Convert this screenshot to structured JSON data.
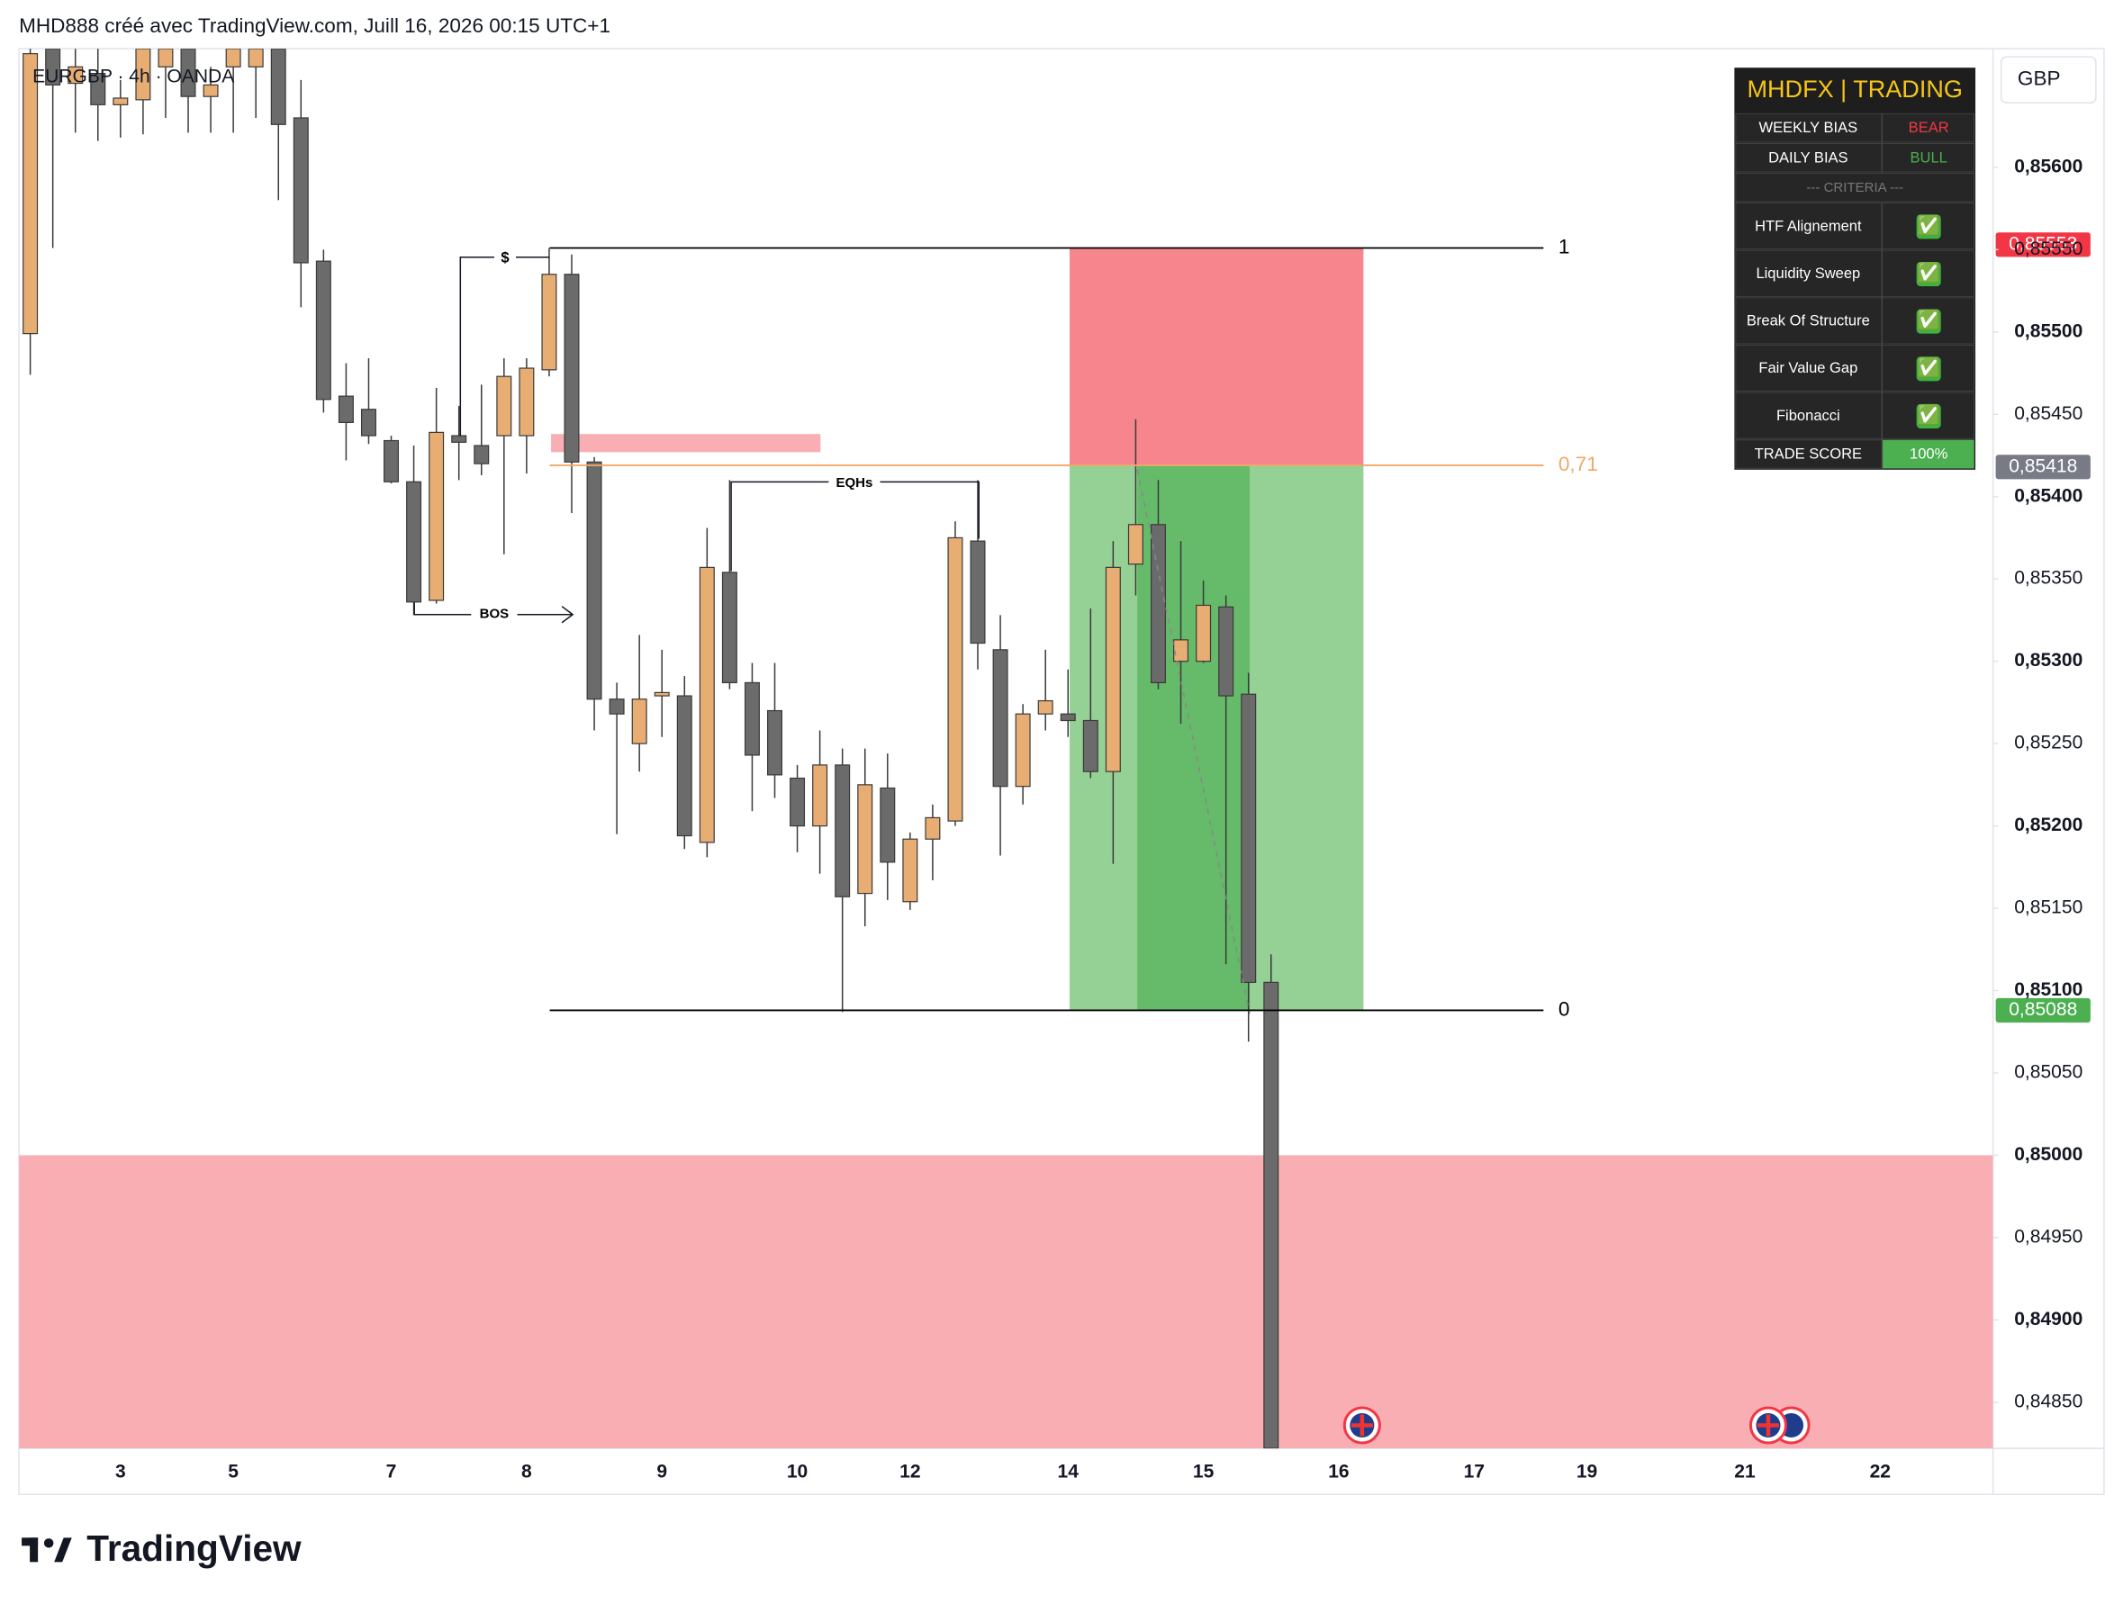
{
  "chart_data": {
    "type": "candlestick",
    "credit": "MHD888 créé avec TradingView.com, Juill 16, 2026 00:15 UTC+1",
    "symbol": "EURGBP · 4h · OANDA",
    "currency": "GBP",
    "brand": "TradingView",
    "up_color": "#e8ad73",
    "down_color": "#6b6b6b",
    "open": [
      0.85499,
      0.85672,
      0.85651,
      0.85657,
      0.85638,
      0.85641,
      0.85661,
      0.85672,
      0.85643,
      0.85661,
      0.85661,
      0.85672,
      0.8563,
      0.85543,
      0.85461,
      0.85453,
      0.85434,
      0.85409,
      0.85337,
      0.85437,
      0.85431,
      0.85437,
      0.85437,
      0.85477,
      0.85535,
      0.85421,
      0.85277,
      0.8525,
      0.85279,
      0.85279,
      0.8519,
      0.85354,
      0.85287,
      0.8527,
      0.85229,
      0.852,
      0.85237,
      0.85159,
      0.85223,
      0.85154,
      0.85192,
      0.85203,
      0.85373,
      0.85307,
      0.85224,
      0.85268,
      0.85268,
      0.85264,
      0.85233,
      0.85359,
      0.85383,
      0.853,
      0.853,
      0.85333,
      0.8528,
      0.85105
    ],
    "high": [
      0.85672,
      0.85672,
      0.85672,
      0.85672,
      0.85653,
      0.85672,
      0.85672,
      0.85672,
      0.85661,
      0.85672,
      0.85672,
      0.85672,
      0.85653,
      0.8555,
      0.85481,
      0.85484,
      0.85437,
      0.85431,
      0.85466,
      0.85455,
      0.85468,
      0.85484,
      0.85484,
      0.85551,
      0.85547,
      0.85424,
      0.85287,
      0.85316,
      0.85307,
      0.85291,
      0.85381,
      0.8541,
      0.85299,
      0.85299,
      0.85237,
      0.85258,
      0.85247,
      0.85247,
      0.85244,
      0.85196,
      0.85213,
      0.85385,
      0.8541,
      0.85328,
      0.85274,
      0.85307,
      0.85295,
      0.85332,
      0.85373,
      0.85447,
      0.8541,
      0.85373,
      0.85349,
      0.8534,
      0.85293,
      0.85122
    ],
    "low": [
      0.85474,
      0.85551,
      0.85621,
      0.85616,
      0.85618,
      0.8562,
      0.8563,
      0.85621,
      0.85621,
      0.85621,
      0.8563,
      0.8558,
      0.85515,
      0.85451,
      0.85422,
      0.85432,
      0.85408,
      0.85328,
      0.85335,
      0.8541,
      0.85413,
      0.85365,
      0.85414,
      0.85473,
      0.8539,
      0.85258,
      0.85195,
      0.85233,
      0.85254,
      0.85186,
      0.85181,
      0.85283,
      0.85209,
      0.85217,
      0.85184,
      0.85171,
      0.85087,
      0.85139,
      0.85155,
      0.85149,
      0.85167,
      0.852,
      0.85295,
      0.85182,
      0.85213,
      0.85258,
      0.85254,
      0.85229,
      0.85177,
      0.8534,
      0.85283,
      0.85262,
      0.85299,
      0.85116,
      0.85069,
      0.84822
    ],
    "close": [
      0.85669,
      0.8565,
      0.85661,
      0.85638,
      0.85642,
      0.85672,
      0.85672,
      0.85643,
      0.8565,
      0.85672,
      0.85672,
      0.85626,
      0.85542,
      0.85459,
      0.85445,
      0.85437,
      0.85409,
      0.85336,
      0.85439,
      0.85433,
      0.8542,
      0.85473,
      0.85478,
      0.85535,
      0.85421,
      0.85277,
      0.85268,
      0.85277,
      0.85281,
      0.85194,
      0.85357,
      0.85287,
      0.85243,
      0.85231,
      0.852,
      0.85237,
      0.85157,
      0.85225,
      0.85178,
      0.85192,
      0.85205,
      0.85375,
      0.85311,
      0.85224,
      0.85268,
      0.85276,
      0.85264,
      0.85233,
      0.85357,
      0.85383,
      0.85287,
      0.85313,
      0.85334,
      0.85279,
      0.85105,
      0.84822
    ],
    "xlim": [
      -0.5,
      87
    ],
    "xticks": [
      {
        "value": 4,
        "label": "3"
      },
      {
        "value": 9,
        "label": "5"
      },
      {
        "value": 16,
        "label": "7"
      },
      {
        "value": 22,
        "label": "8"
      },
      {
        "value": 28,
        "label": "9"
      },
      {
        "value": 34,
        "label": "10"
      },
      {
        "value": 39,
        "label": "12"
      },
      {
        "value": 46,
        "label": "14"
      },
      {
        "value": 52,
        "label": "15"
      },
      {
        "value": 58,
        "label": "16"
      },
      {
        "value": 64,
        "label": "17"
      },
      {
        "value": 69,
        "label": "19"
      },
      {
        "value": 76,
        "label": "21"
      },
      {
        "value": 82,
        "label": "22"
      }
    ],
    "ylim": [
      0.84822,
      0.85672
    ],
    "yticks": [
      {
        "value": 0.8485,
        "label": "0,84850"
      },
      {
        "value": 0.849,
        "label": "0,84900"
      },
      {
        "value": 0.8495,
        "label": "0,84950"
      },
      {
        "value": 0.85,
        "label": "0,85000"
      },
      {
        "value": 0.8505,
        "label": "0,85050"
      },
      {
        "value": 0.851,
        "label": "0,85100"
      },
      {
        "value": 0.8515,
        "label": "0,85150"
      },
      {
        "value": 0.852,
        "label": "0,85200"
      },
      {
        "value": 0.8525,
        "label": "0,85250"
      },
      {
        "value": 0.853,
        "label": "0,85300"
      },
      {
        "value": 0.8535,
        "label": "0,85350"
      },
      {
        "value": 0.854,
        "label": "0,85400"
      },
      {
        "value": 0.8545,
        "label": "0,85450"
      },
      {
        "value": 0.855,
        "label": "0,85500"
      },
      {
        "value": 0.8555,
        "label": "0,85550"
      },
      {
        "value": 0.856,
        "label": "0,85600"
      }
    ],
    "fib_levels": [
      {
        "label": "1",
        "value": 0.85551,
        "color": "#000000"
      },
      {
        "label": "0,71",
        "value": 0.85419,
        "color": "#f0a868"
      },
      {
        "label": "0",
        "value": 0.85088,
        "color": "#000000"
      }
    ],
    "price_labels": [
      {
        "label": "0,85553",
        "value": 0.85553,
        "color": "#f23645"
      },
      {
        "label": "0,85418",
        "value": 0.85418,
        "color": "#787b86"
      },
      {
        "label": "0,85088",
        "value": 0.85088,
        "color": "#4caf50"
      }
    ],
    "zones": [
      {
        "top": 0.85551,
        "bottom": 0.85419,
        "color": "#f7858e"
      },
      {
        "top": 0.85419,
        "bottom": 0.85088,
        "color": "#95d095"
      },
      {
        "top": 0.85419,
        "bottom": 0.85088,
        "color": "#66bb6a"
      },
      {
        "top": 0.85,
        "bottom": 0.84822,
        "color": "#f9aeb4"
      },
      {
        "top": 0.85438,
        "bottom": 0.85427,
        "color": "#f9aeb4"
      }
    ],
    "annotations": [
      "$",
      "EQHs",
      "BOS"
    ],
    "table": {
      "title": "MHDFX | TRADING",
      "rows": [
        [
          "WEEKLY BIAS",
          "BEAR"
        ],
        [
          "DAILY BIAS",
          "BULL"
        ],
        [
          "--- CRITERIA ---"
        ],
        [
          "HTF Alignement",
          "✅"
        ],
        [
          "Liquidity Sweep",
          "✅"
        ],
        [
          "Break Of Structure",
          "✅"
        ],
        [
          "Fair Value Gap",
          "✅"
        ],
        [
          "Fibonacci",
          "✅"
        ],
        [
          "TRADE SCORE",
          "100%"
        ]
      ]
    }
  }
}
